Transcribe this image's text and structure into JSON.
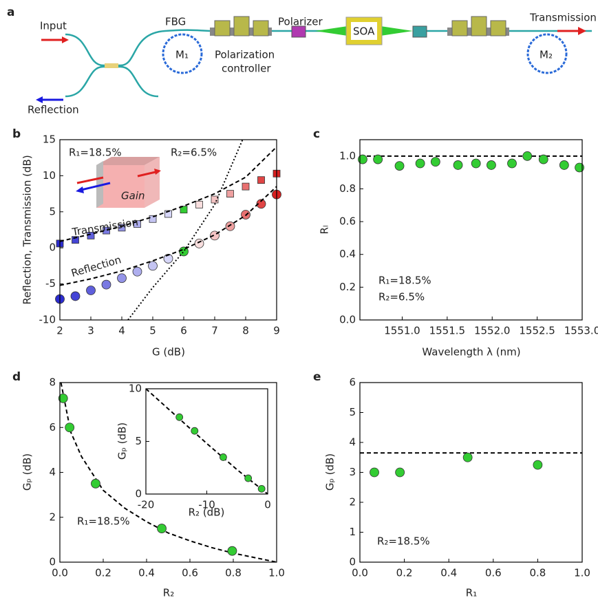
{
  "diagram": {
    "label": "a",
    "input": "Input",
    "reflection": "Reflection",
    "fbg": "FBG",
    "m1": "M₁",
    "pc": [
      "Polarization",
      "controller"
    ],
    "polarizer": "Polarizer",
    "soa": "SOA",
    "m2": "M₂",
    "transmission": "Transmission"
  },
  "chart_data": [
    {
      "type": "scatter",
      "label": "b",
      "xlabel": "G (dB)",
      "ylabel": "Reflection, Transmission (dB)",
      "xlim": [
        2,
        9
      ],
      "xticks": [
        2,
        3,
        4,
        5,
        6,
        7,
        8,
        9
      ],
      "ylim": [
        -10,
        15
      ],
      "yticks": [
        -10,
        -5,
        0,
        5,
        10,
        15
      ],
      "annotations": [
        "R₁=18.5%",
        "R₂=6.5%",
        "Gain"
      ],
      "series": [
        {
          "marker": "square",
          "x": [
            2,
            2.5,
            3,
            3.5,
            4,
            4.5,
            5,
            5.5,
            6,
            6.5,
            7,
            7.5,
            8,
            8.5,
            9
          ],
          "values": [
            0.6,
            1.1,
            1.7,
            2.4,
            2.8,
            3.3,
            4.0,
            4.7,
            5.3,
            6.0,
            6.7,
            7.5,
            8.5,
            9.4,
            10.3
          ],
          "colors": [
            "#2b2bd0",
            "#4545d6",
            "#5f5fdc",
            "#7a7ae2",
            "#9494e8",
            "#aeaeee",
            "#c4c4f2",
            "#d6d6f8",
            "#33cc33",
            "#f8dede",
            "#f4c4c4",
            "#eea0a0",
            "#e87070",
            "#e04545",
            "#d81f1f"
          ]
        },
        {
          "marker": "circle",
          "x": [
            2,
            2.5,
            3,
            3.5,
            4,
            4.5,
            5,
            5.5,
            6,
            6.5,
            7,
            7.5,
            8,
            8.5,
            9
          ],
          "values": [
            -7.1,
            -6.7,
            -5.9,
            -5.1,
            -4.2,
            -3.3,
            -2.5,
            -1.5,
            -0.5,
            0.6,
            1.7,
            3.0,
            4.6,
            6.1,
            7.4
          ],
          "colors": [
            "#2b2bd0",
            "#4545d6",
            "#5f5fdc",
            "#7a7ae2",
            "#9494e8",
            "#aeaeee",
            "#c4c4f2",
            "#d6d6f8",
            "#33cc33",
            "#f8dede",
            "#f4c4c4",
            "#eea0a0",
            "#e87070",
            "#e04545",
            "#d81f1f"
          ]
        },
        {
          "name": "Transmission",
          "marker": "line",
          "dash": "dashed",
          "color": "#000000",
          "x": [
            2,
            3,
            4,
            5,
            6,
            7,
            8,
            9
          ],
          "values": [
            0.9,
            1.9,
            3.0,
            4.3,
            5.8,
            7.5,
            9.8,
            14
          ]
        },
        {
          "name": "Reflection",
          "marker": "line",
          "dash": "dashed",
          "color": "#000000",
          "x": [
            2,
            3,
            4,
            5,
            6,
            7,
            8,
            9
          ],
          "values": [
            -5.2,
            -4.3,
            -3.2,
            -1.8,
            -0.2,
            1.8,
            4.5,
            8.5
          ]
        },
        {
          "marker": "line",
          "dash": "dotted",
          "color": "#000000",
          "x": [
            4.2,
            5,
            6,
            7,
            7.9
          ],
          "values": [
            -10,
            -5.5,
            -0.5,
            6,
            15
          ]
        }
      ]
    },
    {
      "type": "scatter",
      "label": "c",
      "xlabel": "Wavelength λ (nm)",
      "ylabel": "Rₗ",
      "xlim": [
        1550.53,
        1553.0
      ],
      "xticks": [
        {
          "value": 1551.0,
          "label": "1551.0"
        },
        1551.5,
        {
          "value": 1552.0,
          "label": "1552.0"
        },
        1552.5,
        {
          "value": 1553.0,
          "label": "1553.0"
        }
      ],
      "ylim": [
        0,
        1.1
      ],
      "yticks": [
        {
          "value": 0,
          "label": "0.0"
        },
        0.2,
        0.4,
        0.6,
        0.8,
        {
          "value": 1,
          "label": "1.0"
        }
      ],
      "hlines": [
        1.0
      ],
      "annotations": [
        "R₁=18.5%",
        "R₂=6.5%"
      ],
      "series": [
        {
          "marker": "circle",
          "color": "#33cc33",
          "x": [
            1550.56,
            1550.73,
            1550.97,
            1551.2,
            1551.37,
            1551.62,
            1551.82,
            1551.99,
            1552.22,
            1552.39,
            1552.57,
            1552.8,
            1552.97
          ],
          "values": [
            0.98,
            0.98,
            0.94,
            0.955,
            0.965,
            0.945,
            0.955,
            0.945,
            0.955,
            1.0,
            0.98,
            0.945,
            0.93
          ]
        }
      ]
    },
    {
      "type": "scatter",
      "label": "d",
      "xlabel": "R₂",
      "ylabel": "Gₚ (dB)",
      "xlim": [
        0,
        1
      ],
      "xticks": [
        {
          "value": 0,
          "label": "0.0"
        },
        0.2,
        0.4,
        0.6,
        0.8,
        {
          "value": 1,
          "label": "1.0"
        }
      ],
      "ylim": [
        0,
        8
      ],
      "yticks": [
        0,
        2,
        4,
        6,
        8
      ],
      "annotations": [
        "R₁=18.5%"
      ],
      "series": [
        {
          "marker": "line",
          "dash": "dashed",
          "color": "#000000",
          "x": [
            0.005,
            0.05,
            0.1,
            0.2,
            0.3,
            0.4,
            0.5,
            0.6,
            0.7,
            0.8,
            0.9,
            1.0
          ],
          "values": [
            8,
            5.8,
            4.7,
            3.2,
            2.4,
            1.8,
            1.3,
            0.95,
            0.65,
            0.4,
            0.2,
            0
          ]
        },
        {
          "marker": "circle",
          "color": "#33cc33",
          "x": [
            0.015,
            0.045,
            0.165,
            0.47,
            0.795
          ],
          "values": [
            7.3,
            6.0,
            3.5,
            1.5,
            0.5
          ]
        }
      ]
    },
    {
      "type": "scatter",
      "xlabel": "R₂ (dB)",
      "ylabel": "Gₚ (dB)",
      "xlim": [
        -20,
        0
      ],
      "xticks": [
        -20,
        -10,
        0
      ],
      "ylim": [
        0,
        10
      ],
      "yticks": [
        0,
        5,
        10
      ],
      "series": [
        {
          "marker": "line",
          "dash": "dashed",
          "color": "#000000",
          "x": [
            -20,
            -15,
            -10,
            -5,
            0
          ],
          "values": [
            10,
            7.4,
            4.8,
            2.3,
            0
          ]
        },
        {
          "marker": "circle",
          "color": "#33cc33",
          "x": [
            -14.5,
            -12,
            -7.3,
            -3.2,
            -1
          ],
          "values": [
            7.3,
            6.0,
            3.5,
            1.5,
            0.5
          ]
        }
      ]
    },
    {
      "type": "scatter",
      "label": "e",
      "xlabel": "R₁",
      "ylabel": "Gₚ (dB)",
      "xlim": [
        0,
        1
      ],
      "xticks": [
        {
          "value": 0,
          "label": "0.0"
        },
        0.2,
        0.4,
        0.6,
        0.8,
        {
          "value": 1,
          "label": "1.0"
        }
      ],
      "ylim": [
        0,
        6
      ],
      "yticks": [
        0,
        1,
        2,
        3,
        4,
        5,
        6
      ],
      "hlines": [
        3.65
      ],
      "annotations": [
        "R₂=18.5%"
      ],
      "series": [
        {
          "marker": "circle",
          "color": "#33cc33",
          "x": [
            0.065,
            0.18,
            0.485,
            0.8
          ],
          "values": [
            3.0,
            3.0,
            3.5,
            3.25
          ]
        }
      ]
    }
  ]
}
